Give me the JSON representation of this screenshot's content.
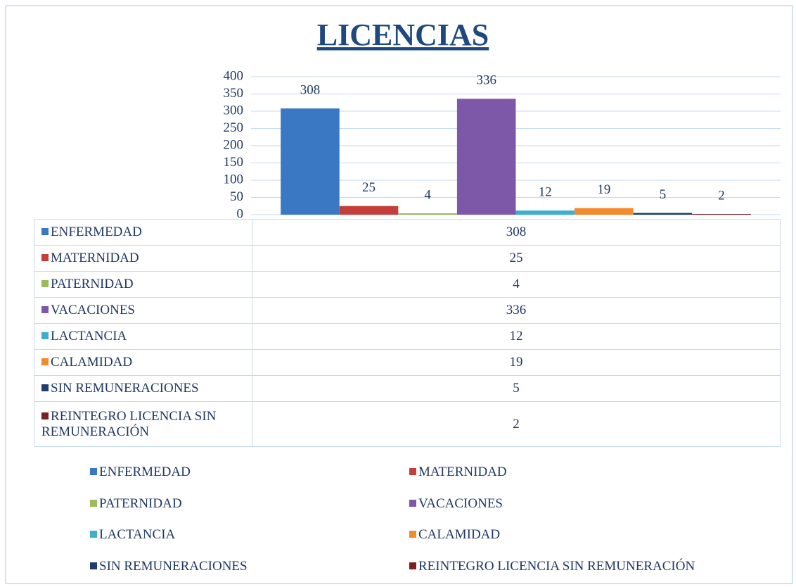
{
  "chart_data": {
    "type": "bar",
    "title": "LICENCIAS",
    "categories": [
      null
    ],
    "series": [
      {
        "name": "ENFERMEDAD",
        "color": "#3b78c3",
        "values": [
          308
        ]
      },
      {
        "name": "MATERNIDAD",
        "color": "#c43e3a",
        "values": [
          25
        ]
      },
      {
        "name": "PATERNIDAD",
        "color": "#9bbb59",
        "values": [
          4
        ]
      },
      {
        "name": "VACACIONES",
        "color": "#7e58a8",
        "values": [
          336
        ]
      },
      {
        "name": "LACTANCIA",
        "color": "#3fb0cc",
        "values": [
          12
        ]
      },
      {
        "name": "CALAMIDAD",
        "color": "#f28a2e",
        "values": [
          19
        ]
      },
      {
        "name": "SIN REMUNERACIONES",
        "color": "#1f3d6b",
        "values": [
          5
        ]
      },
      {
        "name": "REINTEGRO LICENCIA SIN REMUNERACIÓN",
        "color": "#7b1f1f",
        "values": [
          2
        ]
      }
    ],
    "ylim": [
      0,
      400
    ],
    "yticks": [
      0,
      50,
      100,
      150,
      200,
      250,
      300,
      350,
      400
    ],
    "grid": true,
    "data_labels": true,
    "data_table": true,
    "legend": "bottom"
  }
}
